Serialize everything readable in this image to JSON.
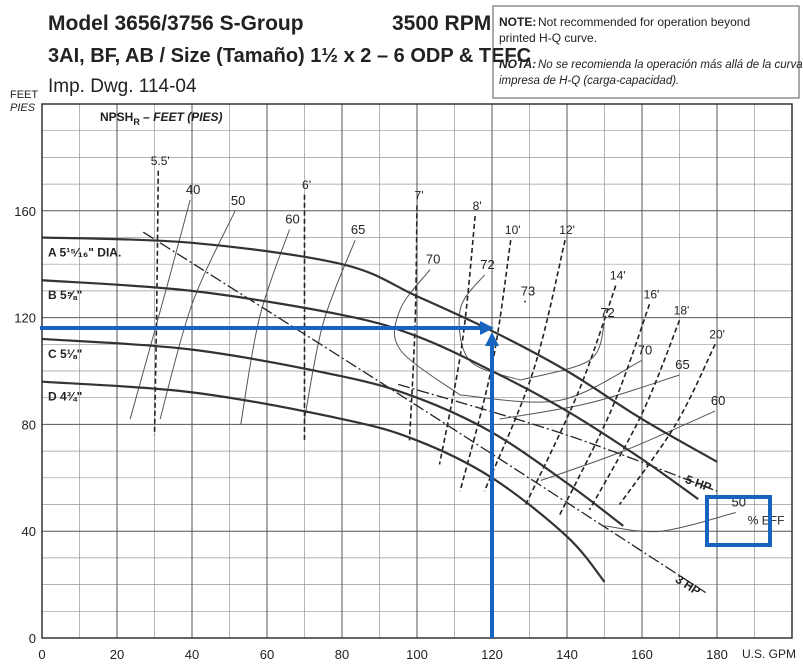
{
  "chart_data": {
    "type": "line",
    "title": "Model 3656/3756 S-Group",
    "rpm": "3500 RPM",
    "subtitle": "3AI, BF, AB / Size (Tamaño) 1½ x 2 – 6  ODP & TEFC",
    "drawing": "Imp. Dwg. 114-04",
    "note_label": "NOTE:",
    "note_lines": [
      "Not recommended for operation beyond",
      "printed H-Q curve."
    ],
    "nota_label": "NOTA:",
    "nota_lines": [
      "No se recomienda la operación más allá de la curva",
      "impresa de H-Q (carga-capacidad)."
    ],
    "y_label": "FEET",
    "y_label_es": "PIES",
    "x_label": "U.S. GPM",
    "npsh_title": "NPSH",
    "npsh_sub": "R",
    "npsh_rest": " – FEET (PIES)",
    "eff_unit": "% EFF",
    "xlim": [
      0,
      200
    ],
    "ylim": [
      0,
      200
    ],
    "xticks": [
      0,
      20,
      40,
      60,
      80,
      100,
      120,
      140,
      160,
      180
    ],
    "yticks": [
      0,
      40,
      80,
      120,
      160
    ],
    "xminorticks": [
      10,
      30,
      50,
      70,
      90,
      110,
      130,
      150,
      170,
      190
    ],
    "yminorticks": [
      10,
      20,
      30,
      50,
      60,
      70,
      90,
      100,
      110,
      130,
      140,
      150,
      170,
      180,
      190
    ],
    "grid": true,
    "series": [
      {
        "name": "A 5¹⁵⁄₁₆\" DIA.",
        "color": "#333333",
        "x": [
          0,
          40,
          80,
          100,
          120,
          140,
          160,
          180
        ],
        "values": [
          150,
          148,
          140,
          128,
          115,
          100,
          82,
          66
        ]
      },
      {
        "name": "B 5⅝\"",
        "color": "#333333",
        "x": [
          0,
          40,
          80,
          100,
          120,
          140,
          160,
          175
        ],
        "values": [
          134,
          130,
          121,
          113,
          100,
          85,
          67,
          52
        ]
      },
      {
        "name": "C 5⅛\"",
        "color": "#333333",
        "x": [
          0,
          40,
          80,
          100,
          120,
          140,
          155
        ],
        "values": [
          112,
          108,
          98,
          90,
          77,
          58,
          42
        ]
      },
      {
        "name": "D 4¾\"",
        "color": "#333333",
        "x": [
          0,
          40,
          80,
          100,
          120,
          140,
          150
        ],
        "values": [
          96,
          92,
          82,
          74,
          60,
          38,
          21
        ]
      }
    ],
    "npsh": [
      {
        "name": "5.5'",
        "x": [
          31,
          30.6,
          30
        ],
        "values": [
          175,
          125,
          76
        ]
      },
      {
        "name": "6'",
        "x": [
          70,
          70,
          70
        ],
        "values": [
          166,
          120,
          74
        ]
      },
      {
        "name": "7'",
        "x": [
          100,
          99.5,
          98
        ],
        "values": [
          162,
          118,
          74
        ]
      },
      {
        "name": "8'",
        "x": [
          115.5,
          112,
          106
        ],
        "values": [
          158,
          110,
          65
        ]
      },
      {
        "name": "10'",
        "x": [
          125,
          120,
          111.5
        ],
        "values": [
          149,
          102,
          55
        ]
      },
      {
        "name": "12'",
        "x": [
          139.5,
          131,
          118
        ],
        "values": [
          149,
          100,
          55
        ]
      },
      {
        "name": "14'",
        "x": [
          153,
          143,
          129
        ],
        "values": [
          132,
          92,
          50
        ]
      },
      {
        "name": "16'",
        "x": [
          162,
          152,
          138
        ],
        "values": [
          125,
          86,
          46
        ]
      },
      {
        "name": "18'",
        "x": [
          170,
          160,
          146
        ],
        "values": [
          119,
          84,
          48
        ]
      },
      {
        "name": "20'",
        "x": [
          179.5,
          169,
          154
        ],
        "values": [
          110,
          80,
          50
        ]
      }
    ],
    "hp": [
      {
        "name": "3 HP",
        "x": [
          27,
          100,
          177
        ],
        "values": [
          152,
          87,
          17
        ]
      },
      {
        "name": "5 HP",
        "x": [
          95,
          140,
          180
        ],
        "values": [
          95,
          76,
          55
        ]
      }
    ],
    "efficiency": [
      {
        "name": "40",
        "x": [
          39.5,
          33,
          23.5
        ],
        "values": [
          164,
          130,
          82
        ]
      },
      {
        "name": "50",
        "x": [
          51.5,
          40,
          31.5
        ],
        "values": [
          160,
          125,
          82
        ]
      },
      {
        "name": "60",
        "x": [
          66,
          58,
          53
        ],
        "values": [
          153,
          120,
          80
        ]
      },
      {
        "name": "65",
        "x": [
          83.5,
          75,
          70
        ],
        "values": [
          149,
          118,
          82
        ]
      },
      {
        "name": "70",
        "x": [
          103.5,
          95.5,
          95.5,
          111.5
        ],
        "values": [
          138,
          123,
          108,
          91
        ]
      },
      {
        "name": "72",
        "x": [
          118,
          111.5,
          114,
          127.5
        ],
        "values": [
          136,
          123,
          104,
          96.6
        ]
      },
      {
        "name": "73",
        "x": [
          128.8
        ],
        "values": [
          126
        ]
      },
      {
        "name": "72",
        "x": [
          150,
          146,
          127.5
        ],
        "values": [
          118,
          104,
          96.6
        ]
      },
      {
        "name": "70",
        "x": [
          160,
          138,
          111.5
        ],
        "values": [
          104,
          89,
          91
        ]
      },
      {
        "name": "65",
        "x": [
          170,
          146,
          122
        ],
        "values": [
          98.5,
          88,
          82
        ]
      },
      {
        "name": "60",
        "x": [
          179.5,
          155,
          133
        ],
        "values": [
          85,
          70,
          59
        ]
      },
      {
        "name": "50",
        "x": [
          185,
          165,
          150
        ],
        "values": [
          47,
          40,
          42
        ]
      }
    ]
  }
}
